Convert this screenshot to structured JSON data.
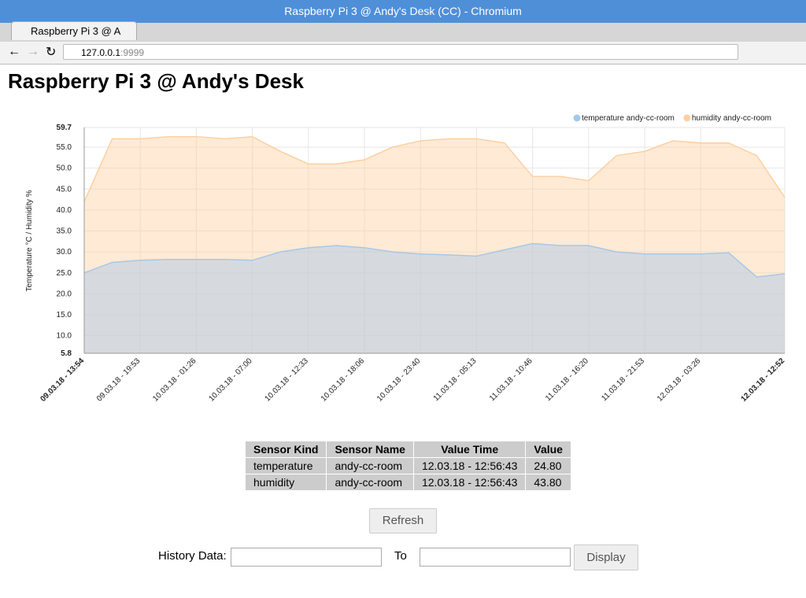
{
  "browser": {
    "window_title": "Raspberry Pi 3 @ Andy's Desk (CC) - Chromium",
    "tab_title": "Raspberry Pi 3 @ A",
    "url_host": "127.0.0.1",
    "url_port": ":9999"
  },
  "header": {
    "title": "Raspberry Pi 3 @ Andy's Desk"
  },
  "chart_data": {
    "type": "area",
    "y_label": "Temperature °C / Humidity %",
    "x": [
      "09.03.18 - 13:54",
      null,
      "09.03.18 - 19:53",
      null,
      "10.03.18 - 01:26",
      null,
      "10.03.18 - 07:00",
      null,
      "10.03.18 - 12:33",
      null,
      "10.03.18 - 18:06",
      null,
      "10.03.18 - 23:40",
      null,
      "11.03.18 - 05:13",
      null,
      "11.03.18 - 10:46",
      null,
      "11.03.18 - 16:20",
      null,
      "11.03.18 - 21:53",
      null,
      "12.03.18 - 03:26",
      null,
      null,
      "12.03.18 - 12:52"
    ],
    "series": [
      {
        "name": "temperature andy-cc-room",
        "color": "#a6c8e8",
        "values": [
          25,
          27.5,
          28,
          28.2,
          28.2,
          28.2,
          28,
          30,
          31,
          31.5,
          31,
          30,
          29.5,
          29.3,
          29,
          30.5,
          32,
          31.5,
          31.5,
          30,
          29.5,
          29.5,
          29.5,
          29.8,
          24,
          24.8
        ]
      },
      {
        "name": "humidity andy-cc-room",
        "color": "#fdd0a2",
        "values": [
          42,
          57,
          57,
          57.5,
          57.5,
          57,
          57.5,
          54,
          51,
          51,
          52,
          55,
          56.5,
          57,
          57,
          56,
          48,
          48,
          47,
          53,
          54,
          56.5,
          56,
          56,
          53,
          43
        ]
      }
    ],
    "ylim": [
      5.8,
      59.7
    ],
    "yticks": [
      5.8,
      {
        "value": 10,
        "label": "10.0"
      },
      {
        "value": 15,
        "label": "15.0"
      },
      {
        "value": 20,
        "label": "20.0"
      },
      {
        "value": 25,
        "label": "25.0"
      },
      {
        "value": 30,
        "label": "30.0"
      },
      {
        "value": 35,
        "label": "35.0"
      },
      {
        "value": 40,
        "label": "40.0"
      },
      {
        "value": 45,
        "label": "45.0"
      },
      {
        "value": 50,
        "label": "50.0"
      },
      {
        "value": 55,
        "label": "55.0"
      },
      59.7
    ],
    "grid": true,
    "legend": "top-right"
  },
  "table": {
    "header": [
      "Sensor Kind",
      "Sensor Name",
      "Value Time",
      "Value"
    ],
    "rows": [
      [
        "temperature",
        "andy-cc-room",
        "12.03.18 - 12:56:43",
        "24.80"
      ],
      [
        "humidity",
        "andy-cc-room",
        "12.03.18 - 12:56:43",
        "43.80"
      ]
    ]
  },
  "controls": {
    "refresh": "Refresh",
    "history_label": "History Data:",
    "to_label": "To",
    "display": "Display"
  }
}
